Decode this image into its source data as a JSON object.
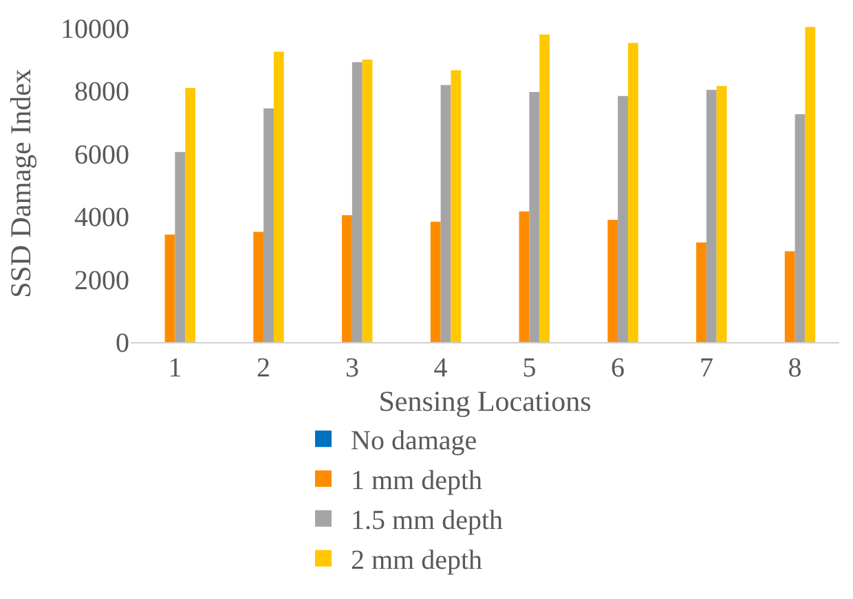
{
  "chart_data": {
    "type": "bar",
    "xlabel": "Sensing Locations",
    "ylabel": "SSD Damage Index",
    "categories": [
      "1",
      "2",
      "3",
      "4",
      "5",
      "6",
      "7",
      "8"
    ],
    "series": [
      {
        "name": "No damage",
        "color": "#0070c0",
        "values": [
          0,
          0,
          0,
          0,
          0,
          0,
          0,
          0
        ]
      },
      {
        "name": "1 mm depth",
        "color": "#ff8c00",
        "values": [
          3420,
          3510,
          4040,
          3830,
          4160,
          3890,
          3170,
          2890
        ]
      },
      {
        "name": "1.5 mm depth",
        "color": "#a5a5a5",
        "values": [
          6050,
          7440,
          8910,
          8180,
          7960,
          7830,
          8030,
          7250
        ]
      },
      {
        "name": "2 mm depth",
        "color": "#ffc800",
        "values": [
          8090,
          9240,
          8990,
          8650,
          9790,
          9520,
          8150,
          10030
        ]
      }
    ],
    "ylim": [
      0,
      10100
    ],
    "yticks": [
      0,
      2000,
      4000,
      6000,
      8000,
      10000
    ],
    "grid": false,
    "legend": "bottom"
  }
}
